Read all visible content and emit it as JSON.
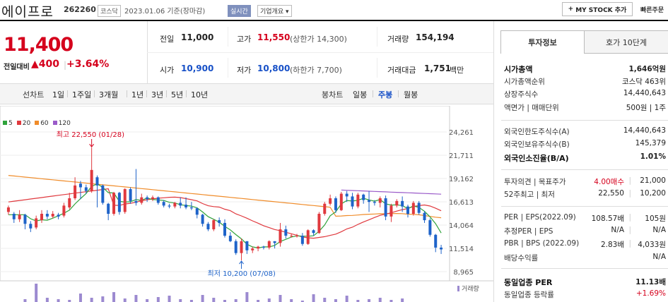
{
  "header": {
    "name": "에이프로",
    "code": "262260",
    "market": "코스닥",
    "date_text": "2023.01.06 기준(장마감)",
    "realtime": "실시간",
    "company_menu": "기업개요",
    "my_stock_label": "MY STOCK 추가",
    "quick_order": "빠른주문"
  },
  "price": {
    "current": "11,400",
    "change_label": "전일대비",
    "change_value": "400",
    "change_pct": "+3.64%"
  },
  "stats": {
    "prev_label": "전일",
    "prev_value": "11,000",
    "high_label": "고가",
    "high_value": "11,550",
    "upper_limit": "(상한가 14,300)",
    "volume_label": "거래량",
    "volume_value": "154,194",
    "open_label": "시가",
    "open_value": "10,900",
    "low_label": "저가",
    "low_value": "10,800",
    "lower_limit": "(하한가 7,700)",
    "amount_label": "거래대금",
    "amount_value": "1,751",
    "amount_unit": "백만"
  },
  "chart_tabs": {
    "line_label": "선차트",
    "line_items": [
      "1일",
      "1주일",
      "3개월",
      "1년",
      "3년",
      "5년",
      "10년"
    ],
    "candle_label": "봉차트",
    "candle_items": [
      "일봉",
      "주봉",
      "월봉"
    ],
    "candle_selected": 1
  },
  "chart_data": {
    "type": "line",
    "legend": [
      {
        "name": "5",
        "color": "#2fa33b"
      },
      {
        "name": "20",
        "color": "#e0393e"
      },
      {
        "name": "60",
        "color": "#f08c2a"
      },
      {
        "name": "120",
        "color": "#9a5bc9"
      }
    ],
    "y_ticks": [
      "24,261",
      "21,711",
      "19,162",
      "16,613",
      "14,064",
      "11,514",
      "8,965"
    ],
    "ylim": [
      8965,
      24261
    ],
    "high_annotation": "최고 22,550 (01/28)",
    "low_annotation": "최저 10,200 (07/08)",
    "volume_label": "거래량",
    "candles": [
      [
        15500,
        16000,
        15200,
        16200
      ],
      [
        15300,
        14700,
        14300,
        15500
      ],
      [
        14700,
        15200,
        14400,
        15700
      ],
      [
        15200,
        14200,
        13600,
        15300
      ],
      [
        14200,
        13700,
        13300,
        14500
      ],
      [
        13800,
        14800,
        13600,
        15100
      ],
      [
        14600,
        15300,
        14300,
        15700
      ],
      [
        15300,
        15000,
        14700,
        15700
      ],
      [
        15000,
        15300,
        14800,
        15600
      ],
      [
        15200,
        15000,
        14700,
        15400
      ],
      [
        15100,
        16200,
        14900,
        16500
      ],
      [
        16000,
        17000,
        15800,
        17600
      ],
      [
        17000,
        18400,
        16800,
        19300
      ],
      [
        18600,
        18200,
        16900,
        18900
      ],
      [
        18200,
        17800,
        17500,
        18500
      ],
      [
        17800,
        20100,
        17600,
        22550
      ],
      [
        19300,
        18400,
        16000,
        19500
      ],
      [
        18400,
        16500,
        16300,
        18500
      ],
      [
        16400,
        15300,
        14600,
        16500
      ],
      [
        15300,
        17600,
        15100,
        17700
      ],
      [
        17600,
        15500,
        15200,
        17700
      ],
      [
        15500,
        18000,
        15300,
        18100
      ],
      [
        18000,
        16700,
        16400,
        18200
      ],
      [
        16700,
        16500,
        16200,
        20200
      ],
      [
        16500,
        17100,
        16300,
        17500
      ],
      [
        17100,
        16900,
        16600,
        17300
      ],
      [
        16900,
        17100,
        16700,
        17300
      ],
      [
        17100,
        16500,
        16300,
        17200
      ],
      [
        16600,
        16200,
        16000,
        16800
      ],
      [
        16200,
        16100,
        15900,
        16400
      ],
      [
        16100,
        16500,
        15900,
        16600
      ],
      [
        16500,
        16200,
        15900,
        17100
      ],
      [
        16300,
        16000,
        15800,
        17100
      ],
      [
        16000,
        15900,
        15700,
        16600
      ],
      [
        15900,
        15200,
        14800,
        16000
      ],
      [
        15200,
        14200,
        13900,
        15300
      ],
      [
        14200,
        13600,
        13400,
        14400
      ],
      [
        13600,
        14600,
        13400,
        14700
      ],
      [
        14600,
        14300,
        13900,
        14900
      ],
      [
        14300,
        12900,
        12700,
        14700
      ],
      [
        12900,
        12300,
        12200,
        13300
      ],
      [
        12300,
        11000,
        10800,
        12500
      ],
      [
        11000,
        12300,
        10200,
        12600
      ],
      [
        12300,
        11300,
        10900,
        12300
      ],
      [
        11300,
        11500,
        11000,
        11700
      ],
      [
        11500,
        11700,
        11200,
        11800
      ],
      [
        11700,
        11600,
        11400,
        11800
      ],
      [
        11600,
        12300,
        11400,
        12400
      ],
      [
        12300,
        12100,
        11500,
        12300
      ],
      [
        12100,
        13600,
        11700,
        14300
      ],
      [
        13600,
        12900,
        12600,
        14000
      ],
      [
        12900,
        12900,
        12700,
        13100
      ],
      [
        12900,
        12900,
        12700,
        13100
      ],
      [
        12900,
        12000,
        11800,
        13200
      ],
      [
        12000,
        13500,
        11900,
        13600
      ],
      [
        13500,
        13200,
        12900,
        13600
      ],
      [
        13200,
        15300,
        13100,
        15500
      ],
      [
        15300,
        16400,
        15100,
        16600
      ],
      [
        16400,
        17000,
        16200,
        17400
      ],
      [
        17000,
        15700,
        15400,
        17200
      ],
      [
        15700,
        17500,
        15600,
        17700
      ],
      [
        17500,
        17200,
        16600,
        17800
      ],
      [
        17200,
        16100,
        15800,
        17600
      ],
      [
        16100,
        17400,
        15900,
        17600
      ],
      [
        17400,
        16800,
        16400,
        17500
      ],
      [
        16800,
        16600,
        15500,
        17800
      ],
      [
        16600,
        16500,
        16200,
        16800
      ],
      [
        16500,
        17000,
        16000,
        17200
      ],
      [
        17000,
        15000,
        14600,
        17300
      ],
      [
        15000,
        16200,
        14400,
        16400
      ],
      [
        16200,
        16700,
        16000,
        16900
      ],
      [
        16700,
        16100,
        15500,
        17200
      ],
      [
        16100,
        15300,
        14900,
        16300
      ],
      [
        15300,
        16500,
        15100,
        16700
      ],
      [
        16500,
        15400,
        15200,
        16700
      ],
      [
        15400,
        14600,
        14300,
        15600
      ],
      [
        14600,
        13000,
        12800,
        14800
      ],
      [
        13000,
        11600,
        11100,
        13100
      ],
      [
        11600,
        11400,
        10900,
        11900
      ]
    ]
  },
  "right_panel": {
    "tab_active": "투자정보",
    "tab_other": "호가 10단계",
    "rows": [
      {
        "k": "시가총액",
        "v": "1,646억원",
        "bold": true
      },
      {
        "k": "시가총액순위",
        "v": "코스닥 463위"
      },
      {
        "k": "상장주식수",
        "v": "14,440,643"
      },
      {
        "k": "액면가 | 매매단위",
        "v": "500원 | 1주"
      },
      {
        "k": "외국인한도주식수(A)",
        "v": "14,440,643"
      },
      {
        "k": "외국인보유주식수(B)",
        "v": "145,379"
      },
      {
        "k": "외국인소진율(B/A)",
        "v": "1.01%",
        "bold": true
      },
      {
        "k": "투자의견 | 목표주가",
        "v1": "4.00매수",
        "v": "21,000"
      },
      {
        "k": "52주최고 | 최저",
        "v1": "22,550",
        "v": "10,200"
      },
      {
        "k": "PER | EPS(2022.09)",
        "v1": "108.57배",
        "v": "105원"
      },
      {
        "k": "추정PER | EPS",
        "v1": "N/A",
        "v": "N/A"
      },
      {
        "k": "PBR | BPS (2022.09)",
        "v1": "2.83배",
        "v": "4,033원"
      },
      {
        "k": "배당수익률",
        "v": "N/A"
      },
      {
        "k": "동일업종 PER",
        "v": "11.13배",
        "bold": true
      },
      {
        "k": "동일업종 등락률",
        "v": "+1.69%",
        "red": true
      }
    ]
  }
}
